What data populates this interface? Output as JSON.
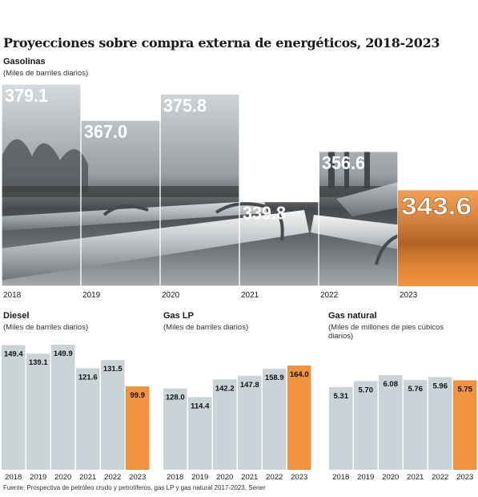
{
  "title": "Proyecciones sobre compra externa de energéticos, 2018-2023",
  "footer": "Fuente: Prospectiva de petróleo crudo y petrolíferos, gas LP y gas natural 2017-2023, Sener",
  "colors": {
    "bar": "#c9d3d8",
    "highlight": "#f0923e",
    "label": "#111111"
  },
  "chart_data": [
    {
      "type": "bar",
      "title": "Gasolinas",
      "ylabel": "(Miles de barriles diarios)",
      "categories": [
        "2018",
        "2019",
        "2020",
        "2021",
        "2022",
        "2023"
      ],
      "values": [
        379.1,
        367.0,
        375.8,
        339.8,
        356.6,
        343.6
      ],
      "value_labels": [
        "379.1",
        "367.0",
        "375.8",
        "339.8",
        "356.6",
        "343.6"
      ],
      "highlight_index": 5,
      "background": "photo-pipelines"
    },
    {
      "type": "bar",
      "title": "Diesel",
      "ylabel": "(Miles de barriles diarios)",
      "categories": [
        "2018",
        "2019",
        "2020",
        "2021",
        "2022",
        "2023"
      ],
      "values": [
        149.4,
        139.1,
        149.9,
        121.6,
        131.5,
        99.9
      ],
      "value_labels": [
        "149.4",
        "139.1",
        "149.9",
        "121.6",
        "131.5",
        "99.9"
      ],
      "highlight_index": 5
    },
    {
      "type": "bar",
      "title": "Gas LP",
      "ylabel": "(Miles de barriles diarios)",
      "categories": [
        "2018",
        "2019",
        "2020",
        "2021",
        "2022",
        "2023"
      ],
      "values": [
        128.0,
        114.4,
        142.2,
        147.8,
        158.9,
        164.0
      ],
      "value_labels": [
        "128.0",
        "114.4",
        "142.2",
        "147.8",
        "158.9",
        "164.0"
      ],
      "highlight_index": 5
    },
    {
      "type": "bar",
      "title": "Gas natural",
      "ylabel": "(Miles de millones de pies cúbicos diarios)",
      "categories": [
        "2018",
        "2019",
        "2020",
        "2021",
        "2022",
        "2023"
      ],
      "values": [
        5.31,
        5.7,
        6.08,
        5.76,
        5.96,
        5.75
      ],
      "value_labels": [
        "5.31",
        "5.70",
        "6.08",
        "5.76",
        "5.96",
        "5.75"
      ],
      "highlight_index": 5
    }
  ]
}
